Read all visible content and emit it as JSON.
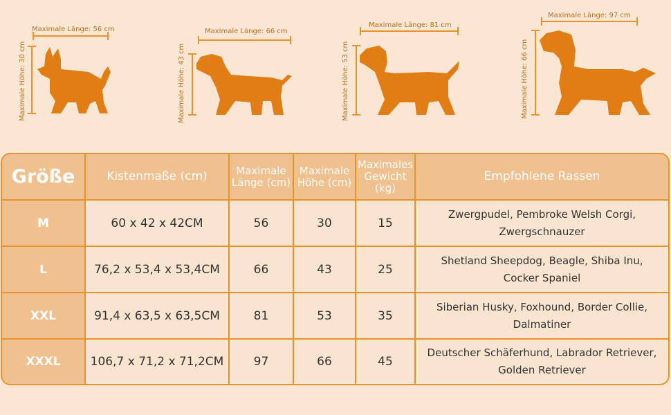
{
  "colors": {
    "accent": "#e8922e",
    "dog": "#e07d14",
    "header_bg": "#f0c08e",
    "background": "#fae6d3"
  },
  "dogs": [
    {
      "length_label": "Maximale Länge: 56 cm",
      "height_label": "Maximale Höhe: 30 cm",
      "icon": "chihuahua-silhouette-icon"
    },
    {
      "length_label": "Maximale Länge: 66 cm",
      "height_label": "Maximale Höhe: 43 cm",
      "icon": "labrador-silhouette-icon"
    },
    {
      "length_label": "Maximale Länge: 81 cm",
      "height_label": "Maximale Höhe: 53 cm",
      "icon": "spaniel-silhouette-icon"
    },
    {
      "length_label": "Maximale Länge: 97 cm",
      "height_label": "Maximale Höhe: 66 cm",
      "icon": "hound-silhouette-icon"
    }
  ],
  "table": {
    "headers": {
      "size": "Größe",
      "dimensions": "Kistenmaße (cm)",
      "length": "Maximale Länge (cm)",
      "height": "Maximale Höhe (cm)",
      "weight": "Maximales Gewicht (kg)",
      "breeds": "Empfohlene Rassen"
    },
    "rows": [
      {
        "size": "M",
        "dimensions": "60 x 42 x 42CM",
        "length": "56",
        "height": "30",
        "weight": "15",
        "breeds_1": "Zwergpudel, Pembroke Welsh Corgi,",
        "breeds_2": "Zwergschnauzer"
      },
      {
        "size": "L",
        "dimensions": "76,2 x 53,4 x 53,4CM",
        "length": "66",
        "height": "43",
        "weight": "25",
        "breeds_1": "Shetland Sheepdog, Beagle, Shiba Inu,",
        "breeds_2": "Cocker Spaniel"
      },
      {
        "size": "XXL",
        "dimensions": "91,4 x 63,5 x 63,5CM",
        "length": "81",
        "height": "53",
        "weight": "35",
        "breeds_1": "Siberian Husky, Foxhound, Border Collie,",
        "breeds_2": "Dalmatiner"
      },
      {
        "size": "XXXL",
        "dimensions": "106,7 x 71,2 x 71,2CM",
        "length": "97",
        "height": "66",
        "weight": "45",
        "breeds_1": "Deutscher Schäferhund, Labrador Retriever,",
        "breeds_2": "Golden Retriever"
      }
    ]
  }
}
